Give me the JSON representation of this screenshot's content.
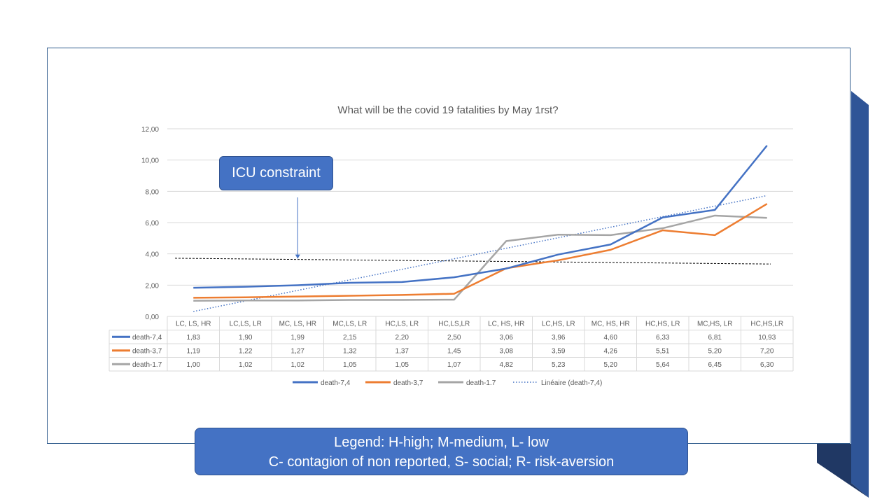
{
  "colors": {
    "death74": "#4472c4",
    "death37": "#ed7d31",
    "death17": "#a5a5a5",
    "trend": "#4472c4",
    "icu": "#000000",
    "accent_box": "#4472c4",
    "ribbon": "#2f5597"
  },
  "chart_data": {
    "type": "line",
    "title": "What will be the covid 19 fatalities by May 1rst?",
    "categories": [
      "LC, LS, HR",
      "LC,LS, LR",
      "MC, LS, HR",
      "MC,LS, LR",
      "HC,LS, LR",
      "HC,LS,LR",
      "LC, HS, HR",
      "LC,HS, LR",
      "MC, HS, HR",
      "HC,HS, LR",
      "MC,HS, LR",
      "HC,HS,LR"
    ],
    "ylim": [
      0,
      12
    ],
    "yticks": [
      "0,00",
      "2,00",
      "4,00",
      "6,00",
      "8,00",
      "10,00",
      "12,00"
    ],
    "grid": true,
    "legend_position": "bottom",
    "series": [
      {
        "name": "death-7,4",
        "values": [
          1.83,
          1.9,
          1.99,
          2.15,
          2.2,
          2.5,
          3.06,
          3.96,
          4.6,
          6.33,
          6.81,
          10.93
        ],
        "labels": [
          "1,83",
          "1,90",
          "1,99",
          "2,15",
          "2,20",
          "2,50",
          "3,06",
          "3,96",
          "4,60",
          "6,33",
          "6,81",
          "10,93"
        ]
      },
      {
        "name": "death-3,7",
        "values": [
          1.19,
          1.22,
          1.27,
          1.32,
          1.37,
          1.45,
          3.08,
          3.59,
          4.26,
          5.51,
          5.2,
          7.2
        ],
        "labels": [
          "1,19",
          "1,22",
          "1,27",
          "1,32",
          "1,37",
          "1,45",
          "3,08",
          "3,59",
          "4,26",
          "5,51",
          "5,20",
          "7,20"
        ]
      },
      {
        "name": "death-1.7",
        "values": [
          1.0,
          1.02,
          1.02,
          1.05,
          1.05,
          1.07,
          4.82,
          5.23,
          5.2,
          5.64,
          6.45,
          6.3
        ],
        "labels": [
          "1,00",
          "1,02",
          "1,02",
          "1,05",
          "1,05",
          "1,07",
          "4,82",
          "5,23",
          "5,20",
          "5,64",
          "6,45",
          "6,30"
        ]
      }
    ],
    "trendline": {
      "name": "Linéaire (death-7,4)",
      "of_series": "death-7,4",
      "style": "dotted"
    },
    "icu_line": {
      "y_start": 3.72,
      "y_end": 3.35,
      "style": "dashed"
    }
  },
  "annotation": {
    "icu_label": "ICU constraint",
    "arrow_target_category": "MC, LS, HR"
  },
  "legend_box": {
    "line1": "Legend: H-high; M-medium, L- low",
    "line2": "C- contagion of non reported, S- social; R- risk-aversion"
  }
}
